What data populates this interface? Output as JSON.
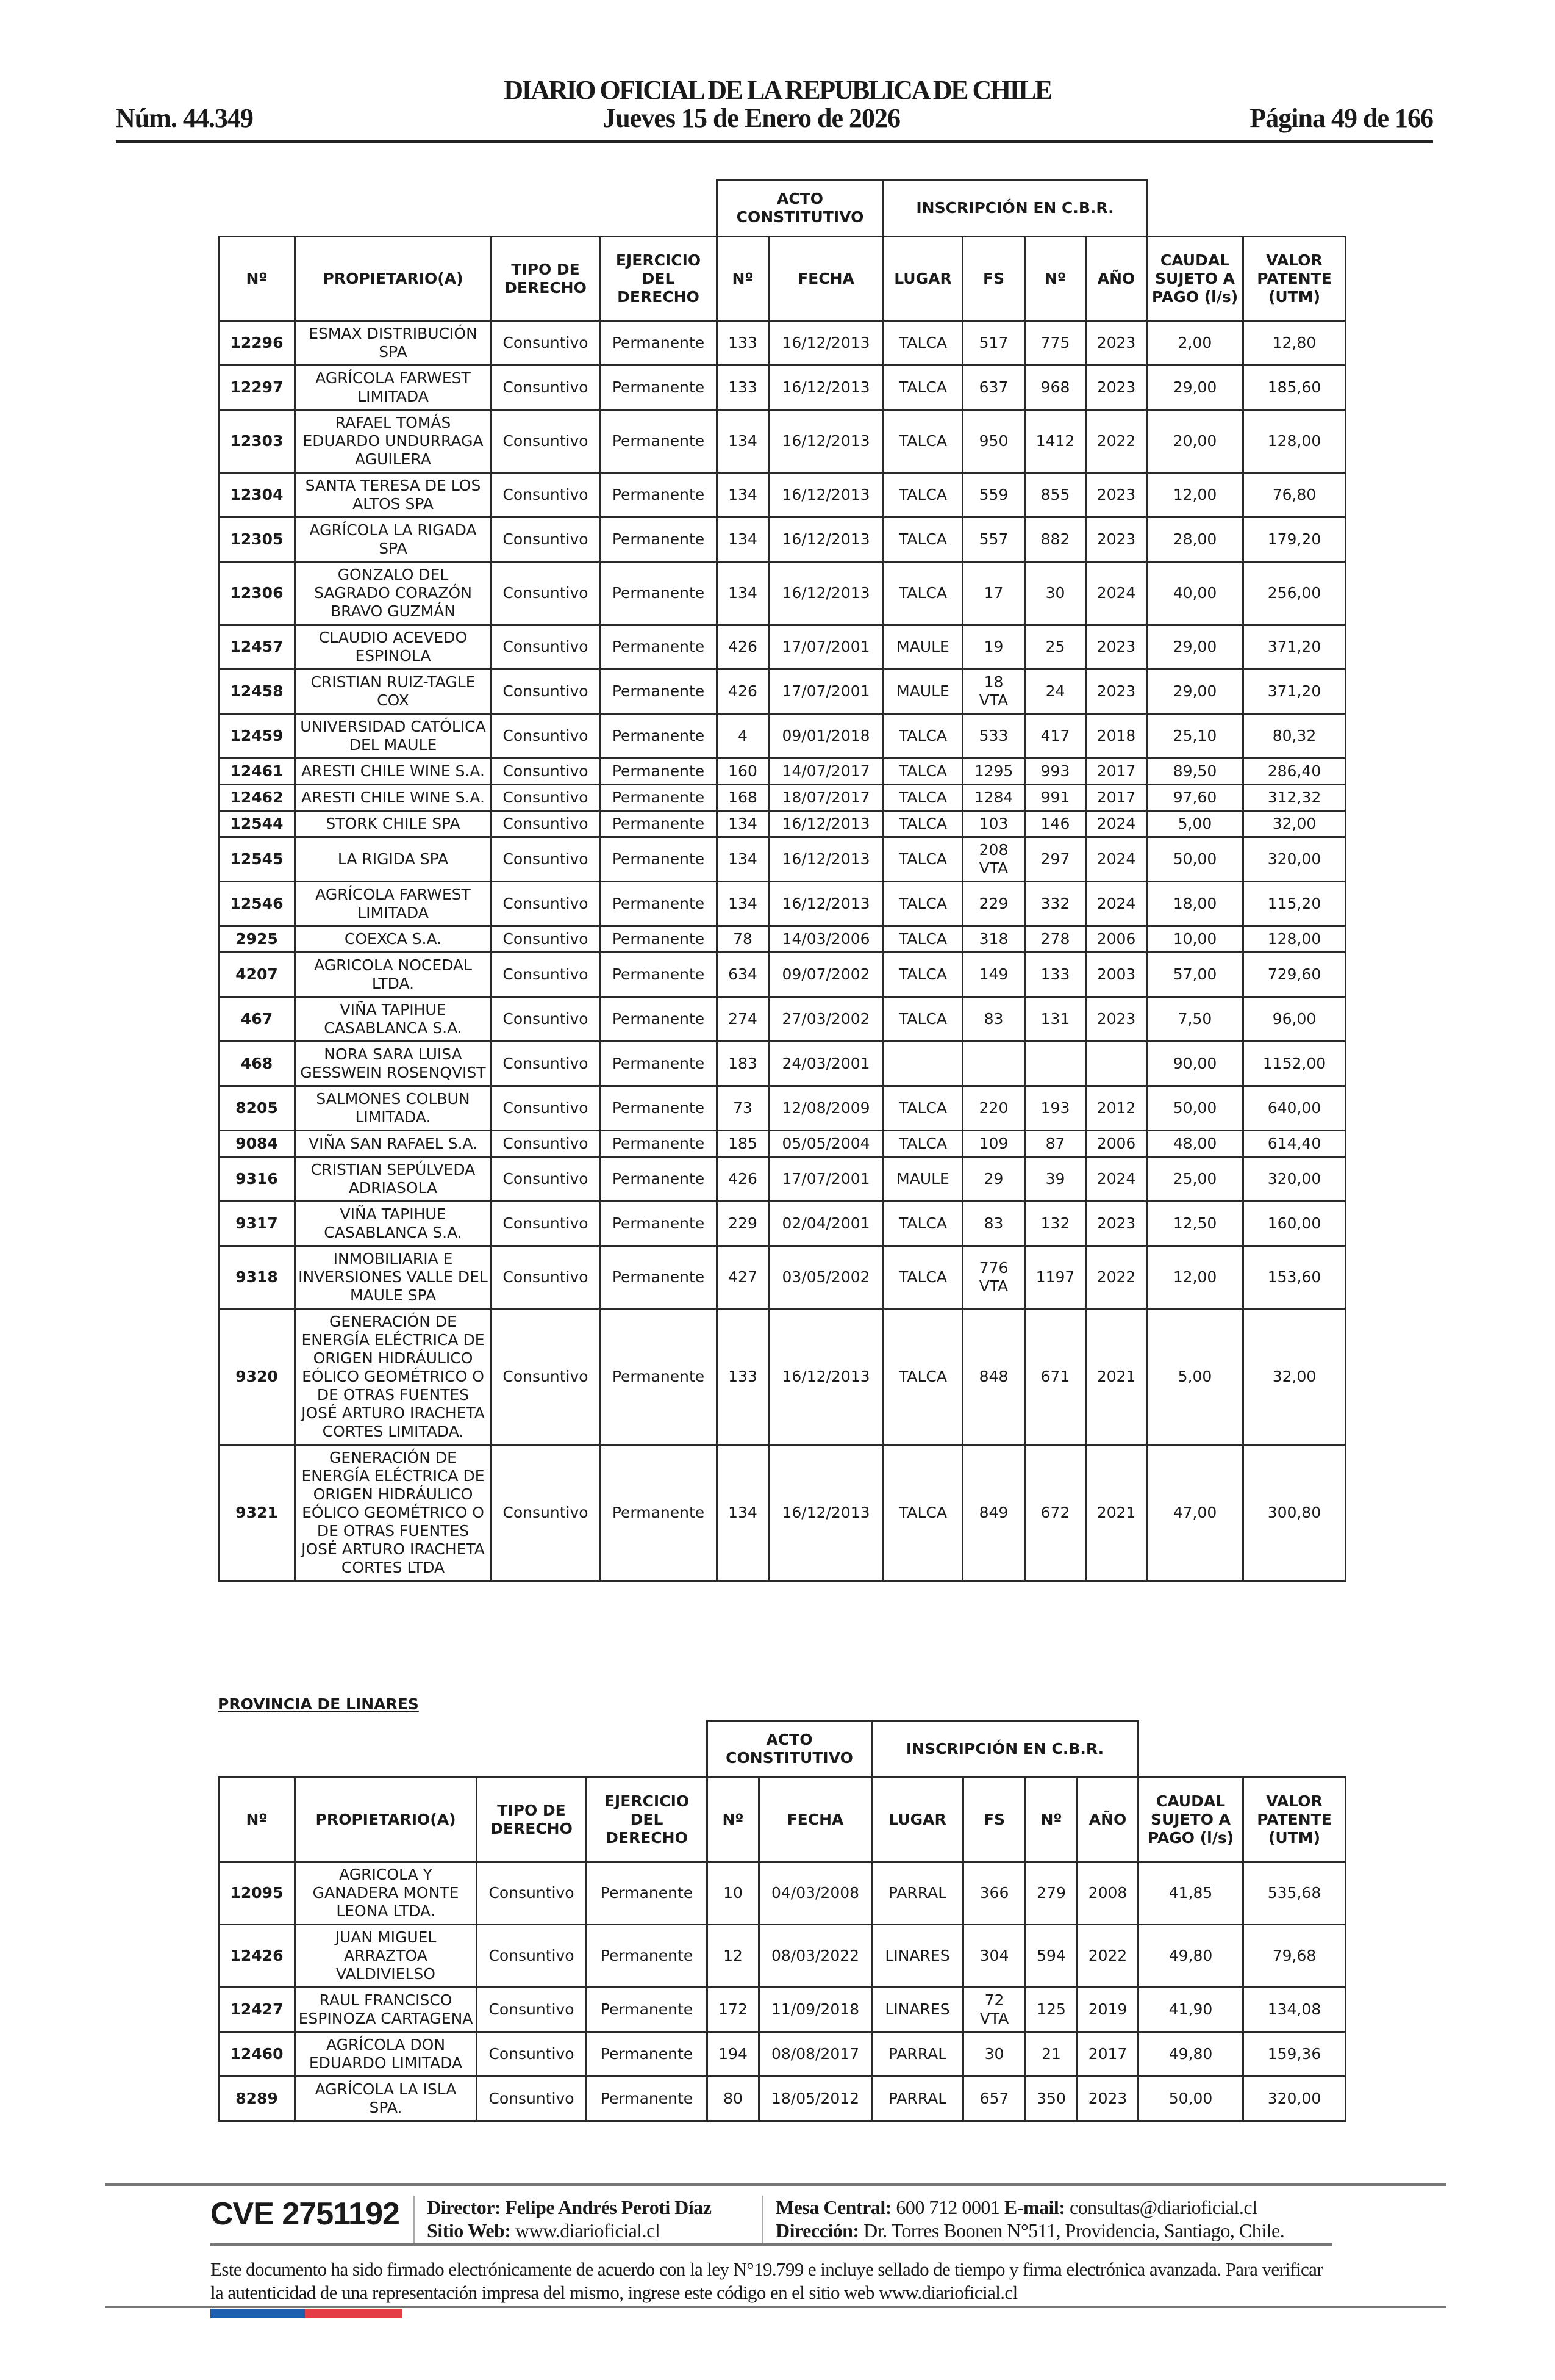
{
  "header": {
    "title": "DIARIO OFICIAL DE LA REPUBLICA DE CHILE",
    "number": "Núm. 44.349",
    "date": "Jueves 15 de Enero de 2026",
    "page": "Página 49 de 166"
  },
  "columns": {
    "group_acto": "ACTO CONSTITUTIVO",
    "group_inscripcion": "INSCRIPCIÓN EN C.B.R.",
    "headers": [
      "Nº",
      "PROPIETARIO(A)",
      "TIPO DE DERECHO",
      "EJERCICIO DEL DERECHO",
      "Nº",
      "FECHA",
      "LUGAR",
      "FS",
      "Nº",
      "AÑO",
      "CAUDAL SUJETO A PAGO (l/s)",
      "VALOR PATENTE (UTM)"
    ]
  },
  "table1": {
    "rows": [
      [
        "12296",
        "ESMAX DISTRIBUCIÓN SPA",
        "Consuntivo",
        "Permanente",
        "133",
        "16/12/2013",
        "TALCA",
        "517",
        "775",
        "2023",
        "2,00",
        "12,80"
      ],
      [
        "12297",
        "AGRÍCOLA FARWEST LIMITADA",
        "Consuntivo",
        "Permanente",
        "133",
        "16/12/2013",
        "TALCA",
        "637",
        "968",
        "2023",
        "29,00",
        "185,60"
      ],
      [
        "12303",
        "RAFAEL TOMÁS EDUARDO UNDURRAGA AGUILERA",
        "Consuntivo",
        "Permanente",
        "134",
        "16/12/2013",
        "TALCA",
        "950",
        "1412",
        "2022",
        "20,00",
        "128,00"
      ],
      [
        "12304",
        "SANTA TERESA DE LOS ALTOS SPA",
        "Consuntivo",
        "Permanente",
        "134",
        "16/12/2013",
        "TALCA",
        "559",
        "855",
        "2023",
        "12,00",
        "76,80"
      ],
      [
        "12305",
        "AGRÍCOLA LA RIGADA SPA",
        "Consuntivo",
        "Permanente",
        "134",
        "16/12/2013",
        "TALCA",
        "557",
        "882",
        "2023",
        "28,00",
        "179,20"
      ],
      [
        "12306",
        "GONZALO DEL SAGRADO CORAZÓN BRAVO GUZMÁN",
        "Consuntivo",
        "Permanente",
        "134",
        "16/12/2013",
        "TALCA",
        "17",
        "30",
        "2024",
        "40,00",
        "256,00"
      ],
      [
        "12457",
        "CLAUDIO ACEVEDO ESPINOLA",
        "Consuntivo",
        "Permanente",
        "426",
        "17/07/2001",
        "MAULE",
        "19",
        "25",
        "2023",
        "29,00",
        "371,20"
      ],
      [
        "12458",
        "CRISTIAN RUIZ-TAGLE COX",
        "Consuntivo",
        "Permanente",
        "426",
        "17/07/2001",
        "MAULE",
        "18 VTA",
        "24",
        "2023",
        "29,00",
        "371,20"
      ],
      [
        "12459",
        "UNIVERSIDAD CATÓLICA DEL MAULE",
        "Consuntivo",
        "Permanente",
        "4",
        "09/01/2018",
        "TALCA",
        "533",
        "417",
        "2018",
        "25,10",
        "80,32"
      ],
      [
        "12461",
        "ARESTI CHILE WINE S.A.",
        "Consuntivo",
        "Permanente",
        "160",
        "14/07/2017",
        "TALCA",
        "1295",
        "993",
        "2017",
        "89,50",
        "286,40"
      ],
      [
        "12462",
        "ARESTI CHILE WINE S.A.",
        "Consuntivo",
        "Permanente",
        "168",
        "18/07/2017",
        "TALCA",
        "1284",
        "991",
        "2017",
        "97,60",
        "312,32"
      ],
      [
        "12544",
        "STORK CHILE SPA",
        "Consuntivo",
        "Permanente",
        "134",
        "16/12/2013",
        "TALCA",
        "103",
        "146",
        "2024",
        "5,00",
        "32,00"
      ],
      [
        "12545",
        "LA RIGIDA SPA",
        "Consuntivo",
        "Permanente",
        "134",
        "16/12/2013",
        "TALCA",
        "208 VTA",
        "297",
        "2024",
        "50,00",
        "320,00"
      ],
      [
        "12546",
        "AGRÍCOLA FARWEST LIMITADA",
        "Consuntivo",
        "Permanente",
        "134",
        "16/12/2013",
        "TALCA",
        "229",
        "332",
        "2024",
        "18,00",
        "115,20"
      ],
      [
        "2925",
        "COEXCA S.A.",
        "Consuntivo",
        "Permanente",
        "78",
        "14/03/2006",
        "TALCA",
        "318",
        "278",
        "2006",
        "10,00",
        "128,00"
      ],
      [
        "4207",
        "AGRICOLA NOCEDAL LTDA.",
        "Consuntivo",
        "Permanente",
        "634",
        "09/07/2002",
        "TALCA",
        "149",
        "133",
        "2003",
        "57,00",
        "729,60"
      ],
      [
        "467",
        "VIÑA TAPIHUE CASABLANCA S.A.",
        "Consuntivo",
        "Permanente",
        "274",
        "27/03/2002",
        "TALCA",
        "83",
        "131",
        "2023",
        "7,50",
        "96,00"
      ],
      [
        "468",
        "NORA SARA LUISA GESSWEIN ROSENQVIST",
        "Consuntivo",
        "Permanente",
        "183",
        "24/03/2001",
        "",
        "",
        "",
        "",
        "90,00",
        "1152,00"
      ],
      [
        "8205",
        "SALMONES COLBUN LIMITADA.",
        "Consuntivo",
        "Permanente",
        "73",
        "12/08/2009",
        "TALCA",
        "220",
        "193",
        "2012",
        "50,00",
        "640,00"
      ],
      [
        "9084",
        "VIÑA SAN RAFAEL S.A.",
        "Consuntivo",
        "Permanente",
        "185",
        "05/05/2004",
        "TALCA",
        "109",
        "87",
        "2006",
        "48,00",
        "614,40"
      ],
      [
        "9316",
        "CRISTIAN SEPÚLVEDA ADRIASOLA",
        "Consuntivo",
        "Permanente",
        "426",
        "17/07/2001",
        "MAULE",
        "29",
        "39",
        "2024",
        "25,00",
        "320,00"
      ],
      [
        "9317",
        "VIÑA TAPIHUE CASABLANCA S.A.",
        "Consuntivo",
        "Permanente",
        "229",
        "02/04/2001",
        "TALCA",
        "83",
        "132",
        "2023",
        "12,50",
        "160,00"
      ],
      [
        "9318",
        "INMOBILIARIA E INVERSIONES VALLE DEL MAULE SPA",
        "Consuntivo",
        "Permanente",
        "427",
        "03/05/2002",
        "TALCA",
        "776 VTA",
        "1197",
        "2022",
        "12,00",
        "153,60"
      ],
      [
        "9320",
        "GENERACIÓN DE ENERGÍA ELÉCTRICA DE ORIGEN HIDRÁULICO EÓLICO GEOMÉTRICO O DE OTRAS FUENTES JOSÉ ARTURO IRACHETA CORTES LIMITADA.",
        "Consuntivo",
        "Permanente",
        "133",
        "16/12/2013",
        "TALCA",
        "848",
        "671",
        "2021",
        "5,00",
        "32,00"
      ],
      [
        "9321",
        "GENERACIÓN DE ENERGÍA ELÉCTRICA DE ORIGEN HIDRÁULICO EÓLICO GEOMÉTRICO O DE OTRAS FUENTES JOSÉ ARTURO IRACHETA CORTES LTDA",
        "Consuntivo",
        "Permanente",
        "134",
        "16/12/2013",
        "TALCA",
        "849",
        "672",
        "2021",
        "47,00",
        "300,80"
      ]
    ]
  },
  "province": "PROVINCIA DE LINARES",
  "table2": {
    "rows": [
      [
        "12095",
        "AGRICOLA Y GANADERA MONTE LEONA LTDA.",
        "Consuntivo",
        "Permanente",
        "10",
        "04/03/2008",
        "PARRAL",
        "366",
        "279",
        "2008",
        "41,85",
        "535,68"
      ],
      [
        "12426",
        "JUAN MIGUEL ARRAZTOA VALDIVIELSO",
        "Consuntivo",
        "Permanente",
        "12",
        "08/03/2022",
        "LINARES",
        "304",
        "594",
        "2022",
        "49,80",
        "79,68"
      ],
      [
        "12427",
        "RAUL FRANCISCO ESPINOZA CARTAGENA",
        "Consuntivo",
        "Permanente",
        "172",
        "11/09/2018",
        "LINARES",
        "72 VTA",
        "125",
        "2019",
        "41,90",
        "134,08"
      ],
      [
        "12460",
        "AGRÍCOLA DON EDUARDO LIMITADA",
        "Consuntivo",
        "Permanente",
        "194",
        "08/08/2017",
        "PARRAL",
        "30",
        "21",
        "2017",
        "49,80",
        "159,36"
      ],
      [
        "8289",
        "AGRÍCOLA LA ISLA SPA.",
        "Consuntivo",
        "Permanente",
        "80",
        "18/05/2012",
        "PARRAL",
        "657",
        "350",
        "2023",
        "50,00",
        "320,00"
      ]
    ]
  },
  "footer": {
    "cve": "CVE 2751192",
    "director_label": "Director:",
    "director": "Felipe Andrés Peroti Díaz",
    "web_label": "Sitio Web:",
    "web": "www.diarioficial.cl",
    "phone_label": "Mesa Central:",
    "phone": "600 712 0001",
    "email_label": "E-mail:",
    "email": "consultas@diarioficial.cl",
    "address_label": "Dirección:",
    "address": "Dr. Torres Boonen N°511, Providencia, Santiago, Chile.",
    "disclaimer": "Este documento ha sido firmado electrónicamente de acuerdo con la ley N°19.799 e incluye sellado de tiempo y firma electrónica avanzada. Para verificar la autenticidad de una representación impresa del mismo, ingrese este código en el sitio web www.diarioficial.cl"
  },
  "colors": {
    "flag_blue": "#1f5fb0",
    "flag_red": "#e63c45"
  }
}
